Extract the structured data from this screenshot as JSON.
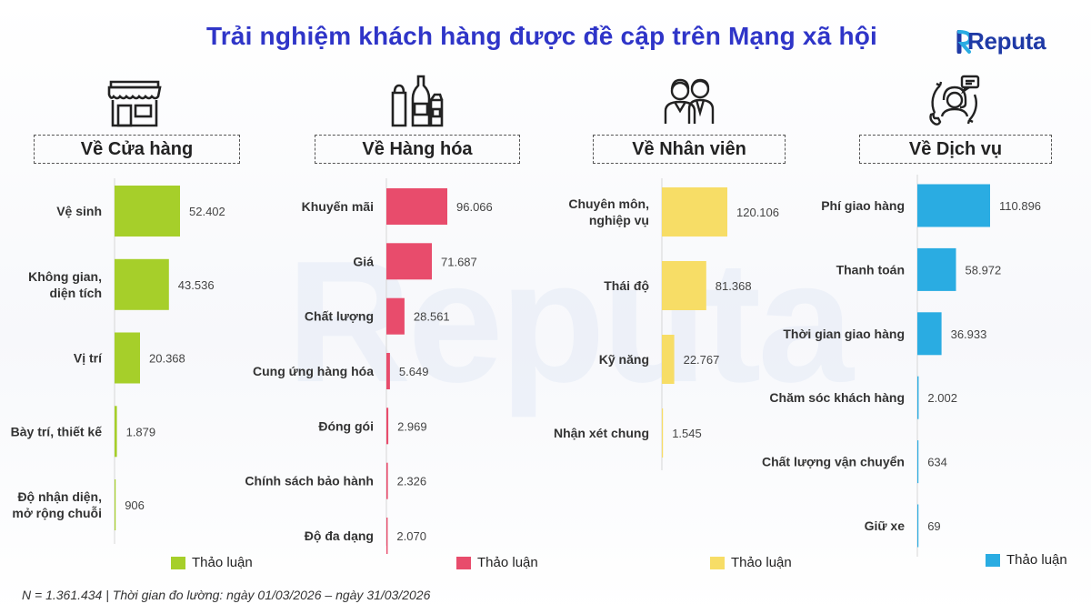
{
  "title": "Trải nghiệm khách hàng được đề cập trên Mạng xã hội",
  "brand": "Reputa",
  "footnote": "N = 1.361.434 | Thời gian đo lường: ngày 01/03/2026 – ngày 31/03/2026",
  "legend_label": "Thảo luận",
  "chart_data": [
    {
      "type": "bar",
      "orientation": "horizontal",
      "title": "Về Cửa hàng",
      "icon": "store-icon",
      "color": "#a6cf2a",
      "series": [
        {
          "name": "Thảo luận",
          "values": [
            52402,
            43536,
            20368,
            1879,
            906
          ]
        }
      ],
      "categories": [
        "Vệ sinh",
        "Không gian, diện tích",
        "Vị trí",
        "Bày trí, thiết kế",
        "Độ nhận diện, mở rộng chuỗi"
      ],
      "category_lines": [
        [
          "Vệ sinh"
        ],
        [
          "Không gian,",
          "diện tích"
        ],
        [
          "Vị trí"
        ],
        [
          "Bày trí, thiết kế"
        ],
        [
          "Độ nhận diện,",
          "mở rộng chuỗi"
        ]
      ],
      "value_labels": [
        "52.402",
        "43.536",
        "20.368",
        "1.879",
        "906"
      ]
    },
    {
      "type": "bar",
      "orientation": "horizontal",
      "title": "Về Hàng hóa",
      "icon": "goods-icon",
      "color": "#e84c6c",
      "series": [
        {
          "name": "Thảo luận",
          "values": [
            96066,
            71687,
            28561,
            5649,
            2969,
            2326,
            2070
          ]
        }
      ],
      "categories": [
        "Khuyến mãi",
        "Giá",
        "Chất lượng",
        "Cung ứng hàng hóa",
        "Đóng gói",
        "Chính sách bảo hành",
        "Độ đa dạng"
      ],
      "category_lines": [
        [
          "Khuyến mãi"
        ],
        [
          "Giá"
        ],
        [
          "Chất lượng"
        ],
        [
          "Cung ứng hàng hóa"
        ],
        [
          "Đóng gói"
        ],
        [
          "Chính sách bảo hành"
        ],
        [
          "Độ đa dạng"
        ]
      ],
      "value_labels": [
        "96.066",
        "71.687",
        "28.561",
        "5.649",
        "2.969",
        "2.326",
        "2.070"
      ]
    },
    {
      "type": "bar",
      "orientation": "horizontal",
      "title": "Về Nhân viên",
      "icon": "staff-icon",
      "color": "#f7dd66",
      "series": [
        {
          "name": "Thảo luận",
          "values": [
            120106,
            81368,
            22767,
            1545
          ]
        }
      ],
      "categories": [
        "Chuyên môn, nghiệp vụ",
        "Thái độ",
        "Kỹ năng",
        "Nhận xét chung"
      ],
      "category_lines": [
        [
          "Chuyên môn,",
          "nghiệp vụ"
        ],
        [
          "Thái độ"
        ],
        [
          "Kỹ năng"
        ],
        [
          "Nhận xét chung"
        ]
      ],
      "value_labels": [
        "120.106",
        "81.368",
        "22.767",
        "1.545"
      ]
    },
    {
      "type": "bar",
      "orientation": "horizontal",
      "title": "Về Dịch vụ",
      "icon": "support-icon",
      "color": "#2aace2",
      "series": [
        {
          "name": "Thảo luận",
          "values": [
            110896,
            58972,
            36933,
            2002,
            634,
            69
          ]
        }
      ],
      "categories": [
        "Phí giao hàng",
        "Thanh toán",
        "Thời gian giao hàng",
        "Chăm sóc khách hàng",
        "Chất lượng vận chuyển",
        "Giữ xe"
      ],
      "category_lines": [
        [
          "Phí giao hàng"
        ],
        [
          "Thanh toán"
        ],
        [
          "Thời gian giao hàng"
        ],
        [
          "Chăm sóc khách hàng"
        ],
        [
          "Chất lượng vận chuyển"
        ],
        [
          "Giữ xe"
        ]
      ],
      "value_labels": [
        "110.896",
        "58.972",
        "36.933",
        "2.002",
        "634",
        "69"
      ]
    }
  ]
}
